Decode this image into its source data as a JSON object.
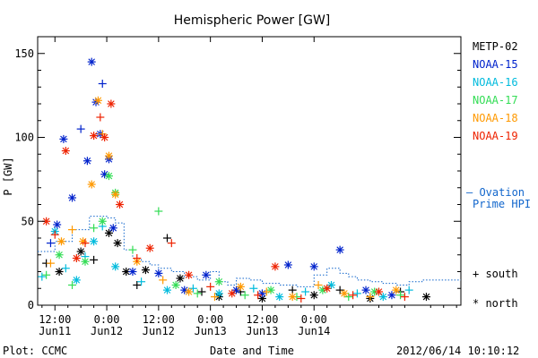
{
  "chart_data": {
    "type": "scatter",
    "title": "Hemispheric Power [GW]",
    "ylabel": "P [GW]",
    "xlabel": "Date and Time",
    "ylim": [
      0,
      160
    ],
    "y_ticks": [
      0,
      50,
      100,
      150
    ],
    "x_axis_hours_range": [
      -4,
      94
    ],
    "x_tick_labels": [
      {
        "hour": 0,
        "time": "12:00",
        "date": "Jun11"
      },
      {
        "hour": 12,
        "time": "0:00",
        "date": "Jun12"
      },
      {
        "hour": 24,
        "time": "12:00",
        "date": "Jun12"
      },
      {
        "hour": 36,
        "time": "0:00",
        "date": "Jun13"
      },
      {
        "hour": 48,
        "time": "12:00",
        "date": "Jun13"
      },
      {
        "hour": 60,
        "time": "0:00",
        "date": "Jun14"
      }
    ],
    "series": [
      {
        "name": "METP-02",
        "color": "#000000",
        "points": [
          [
            -2,
            25,
            "+"
          ],
          [
            1,
            20,
            "*"
          ],
          [
            6,
            32,
            "*"
          ],
          [
            9,
            27,
            "+"
          ],
          [
            12.5,
            43,
            "*"
          ],
          [
            14.5,
            37,
            "*"
          ],
          [
            16.5,
            20,
            "*"
          ],
          [
            19,
            12,
            "+"
          ],
          [
            21,
            21,
            "*"
          ],
          [
            26,
            40,
            "+"
          ],
          [
            29,
            16,
            "*"
          ],
          [
            34,
            8,
            "+"
          ],
          [
            38,
            5,
            "*"
          ],
          [
            43,
            8,
            "+"
          ],
          [
            48,
            4,
            "*"
          ],
          [
            55,
            9,
            "+"
          ],
          [
            60,
            6,
            "*"
          ],
          [
            66,
            9,
            "+"
          ],
          [
            73,
            4,
            "*"
          ],
          [
            80,
            8,
            "+"
          ],
          [
            86,
            5,
            "*"
          ]
        ]
      },
      {
        "name": "NOAA-15",
        "color": "#0022cc",
        "points": [
          [
            -1,
            37,
            "+"
          ],
          [
            0.5,
            48,
            "*"
          ],
          [
            2,
            99,
            "*"
          ],
          [
            4,
            64,
            "*"
          ],
          [
            6,
            105,
            "+"
          ],
          [
            7.5,
            86,
            "*"
          ],
          [
            8.5,
            145,
            "*"
          ],
          [
            9.5,
            121,
            "*"
          ],
          [
            10.5,
            102,
            "*"
          ],
          [
            11,
            132,
            "+"
          ],
          [
            11.5,
            78,
            "*"
          ],
          [
            12.5,
            87,
            "*"
          ],
          [
            13.5,
            46,
            "*"
          ],
          [
            18,
            20,
            "*"
          ],
          [
            24,
            19,
            "*"
          ],
          [
            30,
            9,
            "*"
          ],
          [
            35,
            18,
            "*"
          ],
          [
            42,
            9,
            "*"
          ],
          [
            48,
            7,
            "*"
          ],
          [
            54,
            24,
            "*"
          ],
          [
            60,
            23,
            "*"
          ],
          [
            66,
            33,
            "*"
          ],
          [
            72,
            9,
            "*"
          ],
          [
            78,
            6,
            "*"
          ]
        ]
      },
      {
        "name": "NOAA-16",
        "color": "#00bbdd",
        "points": [
          [
            -3,
            17,
            "+"
          ],
          [
            0,
            44,
            "*"
          ],
          [
            2.5,
            22,
            "+"
          ],
          [
            5,
            15,
            "*"
          ],
          [
            7,
            29,
            "+"
          ],
          [
            9,
            38,
            "*"
          ],
          [
            11,
            47,
            "+"
          ],
          [
            14,
            23,
            "*"
          ],
          [
            20,
            14,
            "+"
          ],
          [
            26,
            9,
            "*"
          ],
          [
            32,
            10,
            "+"
          ],
          [
            38,
            7,
            "*"
          ],
          [
            46,
            10,
            "+"
          ],
          [
            52,
            5,
            "*"
          ],
          [
            58,
            8,
            "+"
          ],
          [
            64,
            12,
            "*"
          ],
          [
            70,
            7,
            "+"
          ],
          [
            76,
            5,
            "*"
          ],
          [
            82,
            9,
            "+"
          ]
        ]
      },
      {
        "name": "NOAA-17",
        "color": "#33dd55",
        "points": [
          [
            -2,
            18,
            "+"
          ],
          [
            1,
            30,
            "*"
          ],
          [
            4,
            12,
            "+"
          ],
          [
            7,
            26,
            "*"
          ],
          [
            9,
            46,
            "+"
          ],
          [
            11,
            50,
            "*"
          ],
          [
            12.5,
            77,
            "*"
          ],
          [
            14,
            67,
            "*"
          ],
          [
            18,
            33,
            "+"
          ],
          [
            24,
            56,
            "+"
          ],
          [
            28,
            12,
            "*"
          ],
          [
            33,
            7,
            "+"
          ],
          [
            38,
            14,
            "*"
          ],
          [
            44,
            6,
            "+"
          ],
          [
            50,
            9,
            "*"
          ],
          [
            56,
            5,
            "+"
          ],
          [
            62,
            9,
            "*"
          ],
          [
            68,
            5,
            "+"
          ],
          [
            74,
            8,
            "*"
          ],
          [
            80,
            6,
            "+"
          ]
        ]
      },
      {
        "name": "NOAA-18",
        "color": "#ff9900",
        "points": [
          [
            -1,
            25,
            "+"
          ],
          [
            1.5,
            38,
            "*"
          ],
          [
            4,
            45,
            "+"
          ],
          [
            6.5,
            38,
            "*"
          ],
          [
            8.5,
            72,
            "*"
          ],
          [
            10,
            122,
            "*"
          ],
          [
            11,
            102,
            "+"
          ],
          [
            12.5,
            89,
            "*"
          ],
          [
            14,
            66,
            "*"
          ],
          [
            19,
            26,
            "*"
          ],
          [
            25,
            15,
            "+"
          ],
          [
            31,
            8,
            "*"
          ],
          [
            37,
            5,
            "+"
          ],
          [
            43,
            11,
            "*"
          ],
          [
            49,
            8,
            "+"
          ],
          [
            55,
            5,
            "*"
          ],
          [
            61,
            12,
            "+"
          ],
          [
            67,
            7,
            "*"
          ],
          [
            73,
            5,
            "+"
          ],
          [
            79,
            9,
            "*"
          ]
        ]
      },
      {
        "name": "NOAA-19",
        "color": "#ee2200",
        "points": [
          [
            -2,
            50,
            "*"
          ],
          [
            0,
            42,
            "+"
          ],
          [
            2.5,
            92,
            "*"
          ],
          [
            5,
            28,
            "*"
          ],
          [
            7,
            37,
            "+"
          ],
          [
            9,
            101,
            "*"
          ],
          [
            10.5,
            112,
            "+"
          ],
          [
            11.5,
            100,
            "*"
          ],
          [
            13,
            120,
            "*"
          ],
          [
            15,
            60,
            "*"
          ],
          [
            19,
            28,
            "+"
          ],
          [
            22,
            34,
            "*"
          ],
          [
            27,
            37,
            "+"
          ],
          [
            31,
            18,
            "*"
          ],
          [
            36,
            11,
            "+"
          ],
          [
            41,
            7,
            "*"
          ],
          [
            47,
            6,
            "+"
          ],
          [
            51,
            23,
            "*"
          ],
          [
            57,
            4,
            "+"
          ],
          [
            63,
            10,
            "*"
          ],
          [
            69,
            6,
            "+"
          ],
          [
            75,
            8,
            "*"
          ],
          [
            81,
            5,
            "+"
          ]
        ]
      }
    ],
    "ovation": {
      "name": "Ovation Prime HPI",
      "color": "#1166cc",
      "points": [
        [
          -4,
          32
        ],
        [
          0,
          38
        ],
        [
          4,
          45
        ],
        [
          8,
          53
        ],
        [
          12,
          52
        ],
        [
          14,
          49
        ],
        [
          16,
          33
        ],
        [
          18,
          28
        ],
        [
          20,
          26
        ],
        [
          22,
          24
        ],
        [
          24,
          22
        ],
        [
          27,
          20
        ],
        [
          30,
          17
        ],
        [
          33,
          15
        ],
        [
          36,
          20
        ],
        [
          38,
          14
        ],
        [
          40,
          12
        ],
        [
          42,
          16
        ],
        [
          45,
          15
        ],
        [
          48,
          13
        ],
        [
          52,
          12
        ],
        [
          56,
          11
        ],
        [
          60,
          18
        ],
        [
          63,
          22
        ],
        [
          66,
          19
        ],
        [
          68,
          17
        ],
        [
          70,
          15
        ],
        [
          73,
          14
        ],
        [
          76,
          13
        ],
        [
          79,
          12
        ],
        [
          82,
          14
        ],
        [
          85,
          15
        ]
      ]
    },
    "legend_placement": "right",
    "legend_lines": [
      "—",
      "Ovation",
      "Prime HPI"
    ],
    "marker_legend": [
      {
        "symbol": "+",
        "label": "south"
      },
      {
        "symbol": "*",
        "label": "north"
      }
    ],
    "footer_left": "Plot: CCMC",
    "footer_right": "2012/06/14 10:10:12"
  }
}
